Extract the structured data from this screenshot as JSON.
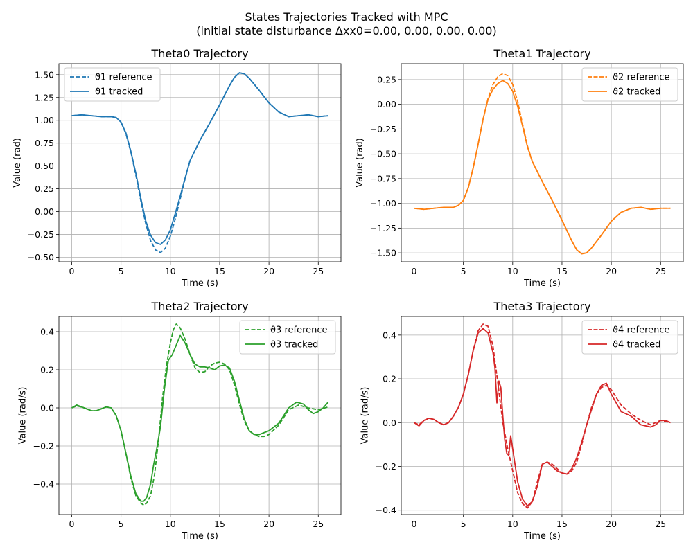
{
  "figure": {
    "title_line1": "States Trajectories Tracked with MPC",
    "title_line2": "(initial state disturbance Δxx0=0.00, 0.00, 0.00, 0.00)"
  },
  "chart_data": [
    {
      "type": "line",
      "title": "Theta0 Trajectory",
      "xlabel": "Time (s)",
      "ylabel": "Value (rad)",
      "xlim": [
        -1.3,
        27.3
      ],
      "ylim": [
        -0.55,
        1.62
      ],
      "xticks": [
        0,
        5,
        10,
        15,
        20,
        25
      ],
      "xtick_labels": [
        "0",
        "5",
        "10",
        "15",
        "20",
        "25"
      ],
      "yticks": [
        -0.5,
        -0.25,
        0,
        0.25,
        0.5,
        0.75,
        1.0,
        1.25,
        1.5
      ],
      "ytick_labels": [
        "−0.50",
        "−0.25",
        "0.00",
        "0.25",
        "0.50",
        "0.75",
        "1.00",
        "1.25",
        "1.50"
      ],
      "grid": true,
      "legend_position": "top-left",
      "color": "#1f77b4",
      "series": [
        {
          "name": "ϑ1 reference",
          "style": "dashed",
          "x": [
            0,
            1,
            2,
            3,
            4,
            4.5,
            5,
            5.5,
            6,
            6.5,
            7,
            7.5,
            8,
            8.5,
            9,
            9.5,
            10,
            10.5,
            11,
            11.5,
            12,
            13,
            14,
            15,
            16,
            16.5,
            17,
            17.5,
            18,
            19,
            20,
            21,
            22,
            23,
            24,
            25,
            26
          ],
          "y": [
            1.05,
            1.06,
            1.05,
            1.04,
            1.04,
            1.03,
            0.98,
            0.85,
            0.65,
            0.4,
            0.12,
            -0.13,
            -0.32,
            -0.42,
            -0.45,
            -0.4,
            -0.27,
            -0.08,
            0.14,
            0.36,
            0.56,
            0.78,
            0.97,
            1.17,
            1.38,
            1.47,
            1.52,
            1.51,
            1.46,
            1.33,
            1.19,
            1.09,
            1.04,
            1.05,
            1.06,
            1.04,
            1.05
          ]
        },
        {
          "name": "ϑ1 tracked",
          "style": "solid",
          "x": [
            0,
            1,
            2,
            3,
            4,
            4.5,
            5,
            5.5,
            6,
            6.5,
            7,
            7.5,
            8,
            8.5,
            9,
            9.5,
            10,
            10.5,
            11,
            11.5,
            12,
            13,
            14,
            15,
            16,
            16.5,
            17,
            17.5,
            18,
            19,
            20,
            21,
            22,
            23,
            24,
            25,
            26
          ],
          "y": [
            1.05,
            1.06,
            1.05,
            1.04,
            1.04,
            1.03,
            0.98,
            0.86,
            0.66,
            0.42,
            0.15,
            -0.1,
            -0.26,
            -0.34,
            -0.36,
            -0.31,
            -0.2,
            -0.02,
            0.17,
            0.37,
            0.56,
            0.78,
            0.97,
            1.17,
            1.38,
            1.47,
            1.52,
            1.51,
            1.46,
            1.33,
            1.19,
            1.09,
            1.04,
            1.05,
            1.06,
            1.04,
            1.05
          ]
        }
      ]
    },
    {
      "type": "line",
      "title": "Theta1 Trajectory",
      "xlabel": "Time (s)",
      "ylabel": "Value (rad)",
      "xlim": [
        -1.3,
        27.3
      ],
      "ylim": [
        -1.59,
        0.41
      ],
      "xticks": [
        0,
        5,
        10,
        15,
        20,
        25
      ],
      "xtick_labels": [
        "0",
        "5",
        "10",
        "15",
        "20",
        "25"
      ],
      "yticks": [
        -1.5,
        -1.25,
        -1.0,
        -0.75,
        -0.5,
        -0.25,
        0,
        0.25
      ],
      "ytick_labels": [
        "−1.50",
        "−1.25",
        "−1.00",
        "−0.75",
        "−0.50",
        "−0.25",
        "0.00",
        "0.25"
      ],
      "grid": true,
      "legend_position": "top-right",
      "color": "#ff7f0e",
      "series": [
        {
          "name": "ϑ2 reference",
          "style": "dashed",
          "x": [
            0,
            1,
            2,
            3,
            4,
            4.5,
            5,
            5.5,
            6,
            6.5,
            7,
            7.5,
            8,
            8.5,
            9,
            9.5,
            10,
            10.5,
            11,
            11.5,
            12,
            13,
            14,
            15,
            16,
            16.5,
            17,
            17.5,
            18,
            19,
            20,
            21,
            22,
            23,
            24,
            25,
            26
          ],
          "y": [
            -1.05,
            -1.06,
            -1.05,
            -1.04,
            -1.04,
            -1.02,
            -0.97,
            -0.84,
            -0.64,
            -0.4,
            -0.15,
            0.06,
            0.2,
            0.28,
            0.31,
            0.29,
            0.2,
            0.03,
            -0.2,
            -0.42,
            -0.58,
            -0.78,
            -0.97,
            -1.17,
            -1.38,
            -1.47,
            -1.51,
            -1.5,
            -1.45,
            -1.32,
            -1.18,
            -1.09,
            -1.05,
            -1.04,
            -1.06,
            -1.05,
            -1.05
          ]
        },
        {
          "name": "ϑ2 tracked",
          "style": "solid",
          "x": [
            0,
            1,
            2,
            3,
            4,
            4.5,
            5,
            5.5,
            6,
            6.5,
            7,
            7.5,
            8,
            8.5,
            9,
            9.5,
            10,
            10.5,
            11,
            11.5,
            12,
            13,
            14,
            15,
            16,
            16.5,
            17,
            17.5,
            18,
            19,
            20,
            21,
            22,
            23,
            24,
            25,
            26
          ],
          "y": [
            -1.05,
            -1.06,
            -1.05,
            -1.04,
            -1.04,
            -1.02,
            -0.97,
            -0.84,
            -0.64,
            -0.4,
            -0.15,
            0.05,
            0.15,
            0.21,
            0.24,
            0.21,
            0.13,
            -0.02,
            -0.22,
            -0.43,
            -0.58,
            -0.78,
            -0.97,
            -1.17,
            -1.38,
            -1.47,
            -1.51,
            -1.5,
            -1.45,
            -1.32,
            -1.18,
            -1.09,
            -1.05,
            -1.04,
            -1.06,
            -1.05,
            -1.05
          ]
        }
      ]
    },
    {
      "type": "line",
      "title": "Theta2 Trajectory",
      "xlabel": "Time (s)",
      "ylabel": "Value (rad/s)",
      "xlim": [
        -1.3,
        27.3
      ],
      "ylim": [
        -0.56,
        0.48
      ],
      "xticks": [
        0,
        5,
        10,
        15,
        20,
        25
      ],
      "xtick_labels": [
        "0",
        "5",
        "10",
        "15",
        "20",
        "25"
      ],
      "yticks": [
        -0.4,
        -0.2,
        0,
        0.2,
        0.4
      ],
      "ytick_labels": [
        "−0.4",
        "−0.2",
        "0.0",
        "0.2",
        "0.4"
      ],
      "grid": true,
      "legend_position": "top-right",
      "color": "#2ca02c",
      "series": [
        {
          "name": "ϑ3 reference",
          "style": "dashed",
          "x": [
            0,
            0.5,
            1,
            1.5,
            2,
            2.5,
            3,
            3.5,
            4,
            4.5,
            5,
            5.5,
            6,
            6.5,
            7,
            7.3,
            7.6,
            8,
            8.4,
            8.8,
            9.2,
            9.6,
            10,
            10.3,
            10.6,
            11,
            11.5,
            12,
            12.5,
            13,
            13.5,
            14,
            14.5,
            15,
            15.5,
            16,
            16.5,
            17,
            17.5,
            18,
            18.5,
            19,
            19.5,
            20,
            21,
            22,
            23,
            24,
            25,
            26
          ],
          "y": [
            0.0,
            0.01,
            0.005,
            -0.005,
            -0.015,
            -0.015,
            -0.005,
            0.005,
            0.0,
            -0.04,
            -0.12,
            -0.24,
            -0.37,
            -0.46,
            -0.5,
            -0.51,
            -0.5,
            -0.46,
            -0.35,
            -0.17,
            0.05,
            0.22,
            0.34,
            0.41,
            0.44,
            0.42,
            0.36,
            0.28,
            0.21,
            0.185,
            0.19,
            0.22,
            0.235,
            0.24,
            0.23,
            0.2,
            0.12,
            0.02,
            -0.07,
            -0.12,
            -0.14,
            -0.15,
            -0.15,
            -0.14,
            -0.09,
            -0.01,
            0.015,
            0.0,
            -0.01,
            0.005
          ]
        },
        {
          "name": "ϑ3 tracked",
          "style": "solid",
          "x": [
            0,
            0.5,
            1,
            1.5,
            2,
            2.5,
            3,
            3.5,
            4,
            4.5,
            5,
            5.5,
            6,
            6.5,
            7,
            7.3,
            7.6,
            8,
            8.3,
            8.6,
            9,
            9.4,
            9.8,
            10.2,
            10.6,
            11,
            11.5,
            12,
            12.5,
            13,
            13.5,
            14,
            14.5,
            15,
            15.5,
            16,
            16.5,
            17,
            17.5,
            18,
            18.5,
            19,
            19.5,
            20,
            21,
            22,
            22.8,
            23.5,
            24,
            24.5,
            25,
            25.5,
            26
          ],
          "y": [
            0.0,
            0.015,
            0.005,
            -0.005,
            -0.015,
            -0.015,
            -0.005,
            0.005,
            0.0,
            -0.04,
            -0.12,
            -0.24,
            -0.36,
            -0.45,
            -0.49,
            -0.49,
            -0.47,
            -0.4,
            -0.3,
            -0.22,
            -0.1,
            0.1,
            0.25,
            0.28,
            0.33,
            0.38,
            0.34,
            0.28,
            0.23,
            0.215,
            0.215,
            0.21,
            0.2,
            0.22,
            0.225,
            0.21,
            0.14,
            0.04,
            -0.06,
            -0.12,
            -0.14,
            -0.14,
            -0.13,
            -0.12,
            -0.08,
            0.0,
            0.03,
            0.02,
            -0.01,
            -0.03,
            -0.02,
            0.0,
            0.03
          ]
        }
      ]
    },
    {
      "type": "line",
      "title": "Theta3 Trajectory",
      "xlabel": "Time (s)",
      "ylabel": "Value (rad/s)",
      "xlim": [
        -1.3,
        27.3
      ],
      "ylim": [
        -0.42,
        0.485
      ],
      "xticks": [
        0,
        5,
        10,
        15,
        20,
        25
      ],
      "xtick_labels": [
        "0",
        "5",
        "10",
        "15",
        "20",
        "25"
      ],
      "yticks": [
        -0.4,
        -0.2,
        0,
        0.2,
        0.4
      ],
      "ytick_labels": [
        "−0.4",
        "−0.2",
        "0.0",
        "0.2",
        "0.4"
      ],
      "grid": true,
      "legend_position": "top-right",
      "color": "#d62728",
      "series": [
        {
          "name": "ϑ4 reference",
          "style": "dashed",
          "x": [
            0,
            0.5,
            1,
            1.5,
            2,
            2.5,
            3,
            3.5,
            4,
            4.5,
            5,
            5.5,
            6,
            6.5,
            7,
            7.5,
            8,
            8.5,
            9,
            9.5,
            10,
            10.5,
            11,
            11.5,
            12,
            12.5,
            13,
            13.5,
            14,
            14.5,
            15,
            15.5,
            16,
            16.5,
            17,
            17.5,
            18,
            18.5,
            19,
            19.5,
            20,
            21,
            22,
            23,
            23.5,
            24,
            25,
            26
          ],
          "y": [
            0.0,
            -0.01,
            0.01,
            0.02,
            0.015,
            0.0,
            -0.01,
            0.0,
            0.03,
            0.07,
            0.13,
            0.22,
            0.33,
            0.42,
            0.45,
            0.44,
            0.35,
            0.18,
            0.0,
            -0.12,
            -0.22,
            -0.32,
            -0.37,
            -0.39,
            -0.36,
            -0.27,
            -0.19,
            -0.18,
            -0.19,
            -0.21,
            -0.23,
            -0.235,
            -0.22,
            -0.18,
            -0.1,
            -0.01,
            0.07,
            0.13,
            0.16,
            0.17,
            0.15,
            0.08,
            0.04,
            0.01,
            0.0,
            -0.01,
            0.01,
            0.0
          ]
        },
        {
          "name": "ϑ4 tracked",
          "style": "solid",
          "x": [
            0,
            0.5,
            1,
            1.5,
            2,
            2.5,
            3,
            3.5,
            4,
            4.5,
            5,
            5.5,
            6,
            6.5,
            7,
            7.5,
            8,
            8.2,
            8.4,
            8.6,
            8.8,
            9,
            9.2,
            9.4,
            9.6,
            9.8,
            10,
            10.5,
            11,
            11.5,
            12,
            12.5,
            13,
            13.5,
            14,
            14.5,
            15,
            15.5,
            16,
            16.5,
            17,
            17.5,
            18,
            18.5,
            19,
            19.5,
            20,
            21,
            22,
            23,
            23.5,
            24,
            24.5,
            25,
            25.5,
            26
          ],
          "y": [
            0.0,
            -0.015,
            0.01,
            0.02,
            0.015,
            0.0,
            -0.01,
            0.0,
            0.03,
            0.07,
            0.13,
            0.22,
            0.33,
            0.41,
            0.43,
            0.41,
            0.32,
            0.25,
            0.09,
            0.19,
            0.16,
            0.03,
            -0.08,
            -0.14,
            -0.15,
            -0.06,
            -0.12,
            -0.27,
            -0.35,
            -0.38,
            -0.36,
            -0.29,
            -0.19,
            -0.18,
            -0.2,
            -0.22,
            -0.23,
            -0.235,
            -0.21,
            -0.16,
            -0.09,
            -0.01,
            0.06,
            0.13,
            0.17,
            0.18,
            0.13,
            0.05,
            0.03,
            -0.01,
            -0.015,
            -0.02,
            -0.01,
            0.01,
            0.01,
            0.0
          ]
        }
      ]
    }
  ]
}
